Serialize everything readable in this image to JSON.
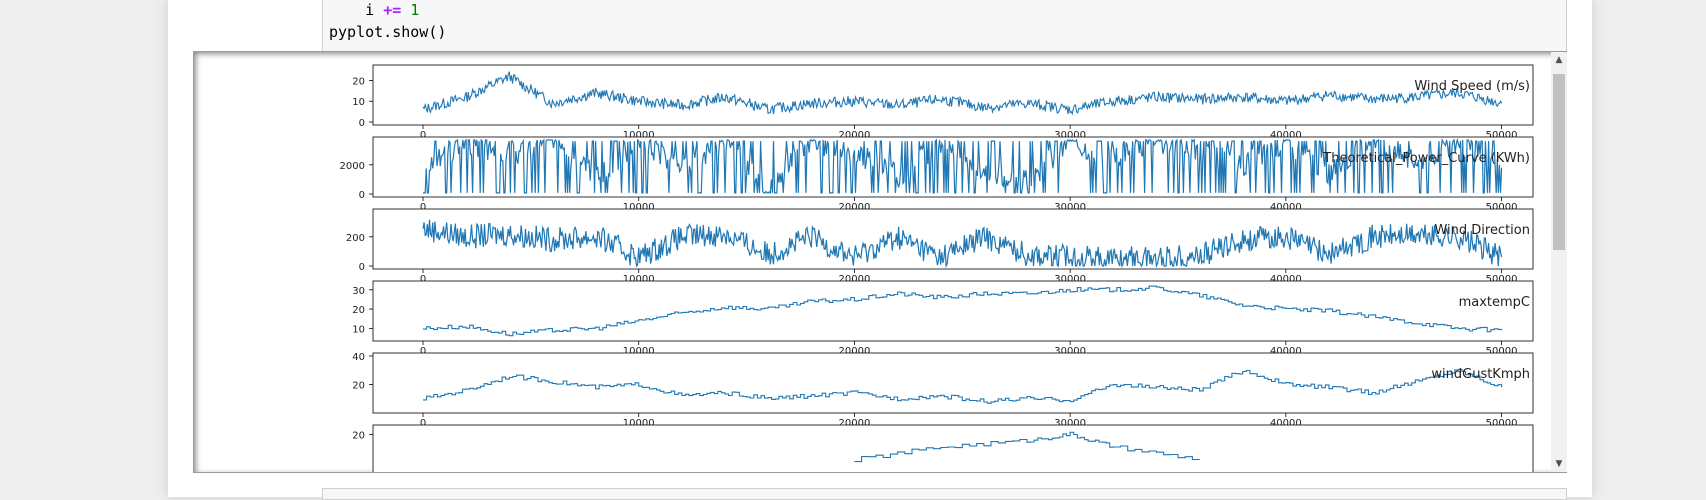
{
  "code": {
    "line_i": "i",
    "op": "+=",
    "one": "1",
    "show": "pyplot.show()"
  },
  "chart_data": [
    {
      "type": "line",
      "title": "Wind Speed (m/s)",
      "xlim": [
        0,
        50530
      ],
      "ylim": [
        0,
        26
      ],
      "yticks": [
        0,
        10,
        20
      ],
      "xticks": [
        0,
        10000,
        20000,
        30000,
        40000,
        50000
      ],
      "x": [
        0,
        2000,
        4000,
        6000,
        8000,
        10000,
        12000,
        14000,
        16000,
        18000,
        20000,
        22000,
        24000,
        26000,
        28000,
        30000,
        32000,
        34000,
        36000,
        38000,
        40000,
        42000,
        44000,
        46000,
        48000,
        50000
      ],
      "values": [
        6,
        12,
        22,
        9,
        14,
        10,
        8,
        12,
        6,
        9,
        10,
        8,
        11,
        7,
        9,
        6,
        10,
        12,
        11,
        12,
        10,
        13,
        11,
        12,
        14,
        9
      ],
      "color": "#1f77b4"
    },
    {
      "type": "line",
      "title": "Theoretical_Power_Curve (KWh)",
      "xlim": [
        0,
        50530
      ],
      "ylim": [
        0,
        3700
      ],
      "yticks": [
        0,
        2000
      ],
      "xticks": [
        0,
        10000,
        20000,
        30000,
        40000,
        50000
      ],
      "x": [
        0,
        2000,
        4000,
        6000,
        8000,
        10000,
        12000,
        14000,
        16000,
        18000,
        20000,
        22000,
        24000,
        26000,
        28000,
        30000,
        32000,
        34000,
        36000,
        38000,
        40000,
        42000,
        44000,
        46000,
        48000,
        50000
      ],
      "values": [
        1500,
        3600,
        2500,
        3600,
        1200,
        3600,
        2000,
        3600,
        600,
        3600,
        2800,
        1200,
        3600,
        1800,
        800,
        3600,
        2500,
        3600,
        3000,
        2000,
        3600,
        1500,
        3600,
        2200,
        3600,
        1800
      ],
      "color": "#1f77b4"
    },
    {
      "type": "line",
      "title": "Wind Direction",
      "xlim": [
        0,
        50530
      ],
      "ylim": [
        0,
        370
      ],
      "yticks": [
        0,
        200
      ],
      "xticks": [
        0,
        10000,
        20000,
        30000,
        40000,
        50000
      ],
      "x": [
        0,
        2000,
        4000,
        6000,
        8000,
        10000,
        12000,
        14000,
        16000,
        18000,
        20000,
        22000,
        24000,
        26000,
        28000,
        30000,
        32000,
        34000,
        36000,
        38000,
        40000,
        42000,
        44000,
        46000,
        48000,
        50000
      ],
      "values": [
        260,
        200,
        220,
        180,
        200,
        60,
        200,
        220,
        80,
        200,
        60,
        200,
        60,
        200,
        80,
        60,
        50,
        55,
        70,
        180,
        200,
        80,
        200,
        210,
        200,
        60
      ],
      "color": "#1f77b4"
    },
    {
      "type": "line",
      "title": "maxtempC",
      "xlim": [
        0,
        50530
      ],
      "ylim": [
        5,
        33
      ],
      "yticks": [
        10,
        20,
        30
      ],
      "xticks": [
        0,
        10000,
        20000,
        30000,
        40000,
        50000
      ],
      "x": [
        0,
        2000,
        4000,
        6000,
        8000,
        10000,
        12000,
        14000,
        16000,
        18000,
        20000,
        22000,
        24000,
        26000,
        28000,
        30000,
        32000,
        34000,
        36000,
        38000,
        40000,
        42000,
        44000,
        46000,
        48000,
        50000
      ],
      "values": [
        10,
        11,
        7,
        9,
        10,
        14,
        18,
        21,
        20,
        24,
        25,
        28,
        26,
        28,
        28,
        30,
        30,
        31,
        27,
        22,
        20,
        19,
        16,
        13,
        10,
        9
      ],
      "color": "#1f77b4"
    },
    {
      "type": "line",
      "title": "windGustKmph",
      "xlim": [
        0,
        50530
      ],
      "ylim": [
        2,
        40
      ],
      "yticks": [
        20,
        40
      ],
      "xticks": [
        0,
        10000,
        20000,
        30000,
        40000,
        50000
      ],
      "x": [
        0,
        2000,
        4000,
        6000,
        8000,
        10000,
        12000,
        14000,
        16000,
        18000,
        20000,
        22000,
        24000,
        26000,
        28000,
        30000,
        32000,
        34000,
        36000,
        38000,
        40000,
        42000,
        44000,
        46000,
        48000,
        50000
      ],
      "values": [
        10,
        16,
        26,
        22,
        18,
        20,
        12,
        14,
        10,
        12,
        14,
        10,
        12,
        8,
        10,
        9,
        20,
        18,
        16,
        30,
        20,
        18,
        14,
        22,
        30,
        18
      ],
      "color": "#1f77b4"
    },
    {
      "type": "line",
      "title": "",
      "xlim": [
        0,
        50530
      ],
      "ylim": [
        5,
        22
      ],
      "yticks": [
        20
      ],
      "xticks": [],
      "x": [
        20000,
        24000,
        28000,
        30000,
        32000,
        36000
      ],
      "values": [
        12,
        16,
        18,
        20,
        16,
        12
      ],
      "color": "#1f77b4"
    }
  ]
}
